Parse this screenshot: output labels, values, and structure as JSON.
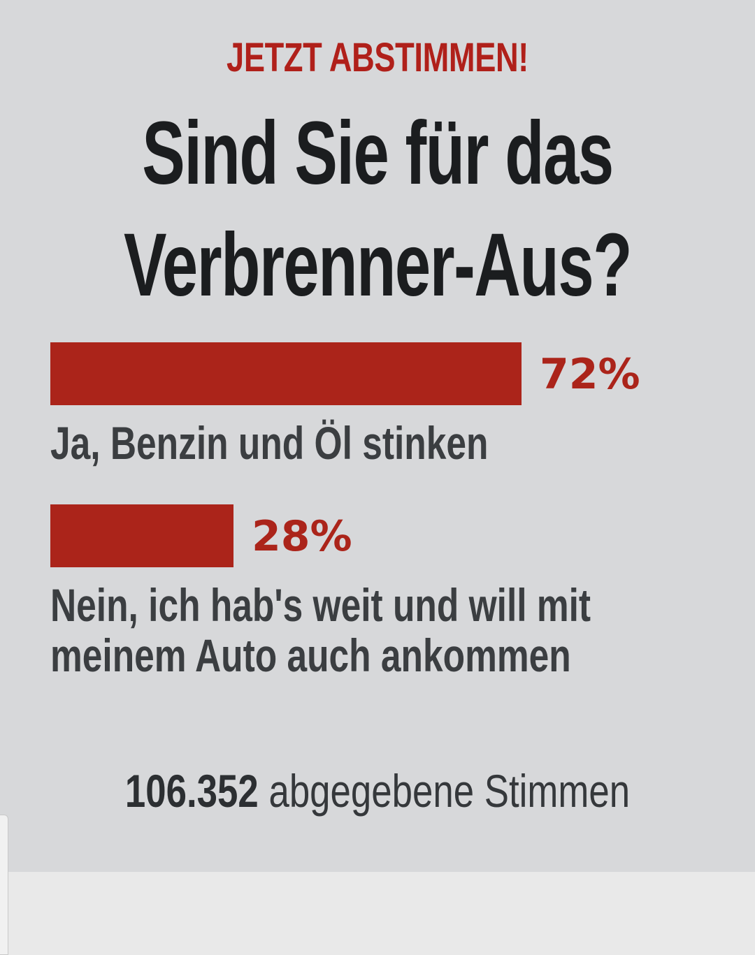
{
  "poll": {
    "kicker": "JETZT ABSTIMMEN!",
    "question_line1": "Sind Sie für das",
    "question_line2": "Verbrenner-Aus?",
    "answers": [
      {
        "percent": 72,
        "percent_label": "72%",
        "label": "Ja, Benzin und Öl stinken"
      },
      {
        "percent": 28,
        "percent_label": "28%",
        "label": "Nein, ich hab's weit und will mit meinem Auto auch ankommen"
      }
    ],
    "vote_count": "106.352",
    "vote_suffix": "abgegebene Stimmen"
  },
  "colors": {
    "accent": "#ab241a",
    "background": "#d7d8da",
    "text_dark": "#1b1d1f",
    "text_muted": "#3b3e41"
  }
}
